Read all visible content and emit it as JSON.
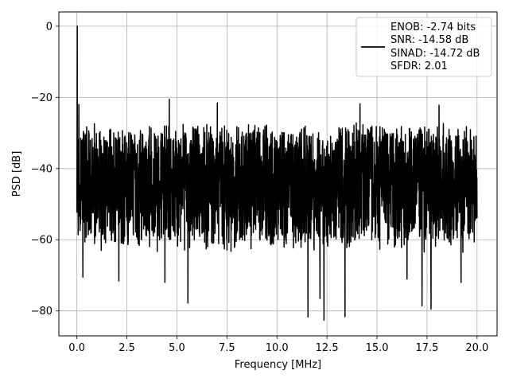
{
  "chart_data": {
    "type": "line",
    "title": "",
    "xlabel": "Frequency [MHz]",
    "ylabel": "PSD [dB]",
    "xlim": [
      -0.9,
      21.0
    ],
    "ylim": [
      -87,
      4
    ],
    "xticks": [
      0.0,
      2.5,
      5.0,
      7.5,
      10.0,
      12.5,
      15.0,
      17.5,
      20.0
    ],
    "xtick_labels": [
      "0.0",
      "2.5",
      "5.0",
      "7.5",
      "10.0",
      "12.5",
      "15.0",
      "17.5",
      "20.0"
    ],
    "yticks": [
      0,
      -20,
      -40,
      -60,
      -80
    ],
    "ytick_labels": [
      "0",
      "−20",
      "−40",
      "−60",
      "−80"
    ],
    "grid": true,
    "legend": {
      "placement": "top-right",
      "entries": [
        "ENOB: -2.74 bits",
        "SNR: -14.58 dB",
        "SINAD: -14.72 dB",
        "SFDR: 2.01"
      ]
    },
    "series": [
      {
        "color": "#000000",
        "noise_band": {
          "x_start": 0.0,
          "x_end": 20.0,
          "upper_envelope_db": -27,
          "lower_envelope_db": -58
        },
        "peaks": [
          {
            "x": 0.02,
            "y": 0
          },
          {
            "x": 4.62,
            "y": -20.5
          },
          {
            "x": 7.02,
            "y": -21.6
          },
          {
            "x": 14.15,
            "y": -21.8
          },
          {
            "x": 18.1,
            "y": -22.2
          },
          {
            "x": 0.1,
            "y": -22.0
          }
        ],
        "troughs": [
          {
            "x": 0.3,
            "y": -70.5
          },
          {
            "x": 2.1,
            "y": -71.6
          },
          {
            "x": 4.4,
            "y": -72.0
          },
          {
            "x": 5.55,
            "y": -77.8
          },
          {
            "x": 11.55,
            "y": -81.7
          },
          {
            "x": 12.35,
            "y": -82.6
          },
          {
            "x": 13.4,
            "y": -81.6
          },
          {
            "x": 17.25,
            "y": -78.6
          },
          {
            "x": 17.7,
            "y": -79.5
          },
          {
            "x": 12.15,
            "y": -76.5
          },
          {
            "x": 16.5,
            "y": -71.0
          },
          {
            "x": 19.2,
            "y": -72.0
          }
        ]
      }
    ]
  }
}
